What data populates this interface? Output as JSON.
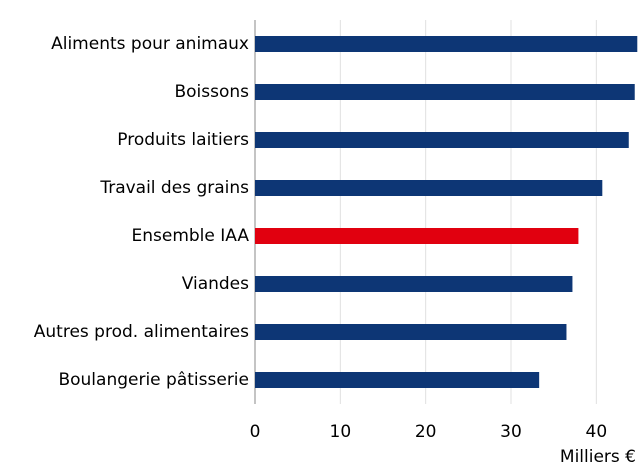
{
  "chart_data": {
    "type": "barh",
    "categories": [
      "Aliments pour animaux",
      "Boissons",
      "Produits laitiers",
      "Travail des grains",
      "Ensemble IAA",
      "Viandes",
      "Autres prod. alimentaires",
      "Boulangerie pâtisserie"
    ],
    "values": [
      44.8,
      44.5,
      43.8,
      40.7,
      37.9,
      37.2,
      36.5,
      33.3
    ],
    "colors": [
      "#0d3675",
      "#0d3675",
      "#0d3675",
      "#0d3675",
      "#e1000f",
      "#0d3675",
      "#0d3675",
      "#0d3675"
    ],
    "xlim": [
      0,
      45
    ],
    "xticks": [
      0,
      10,
      20,
      30,
      40
    ],
    "x_label": "Milliers €",
    "grid": true
  }
}
